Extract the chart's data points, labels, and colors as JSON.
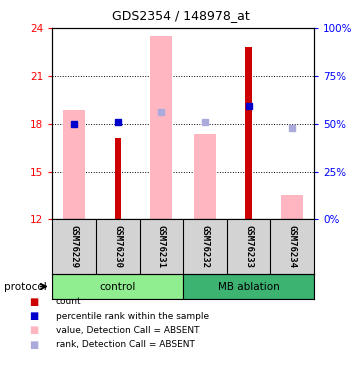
{
  "title": "GDS2354 / 148978_at",
  "samples": [
    "GSM76229",
    "GSM76230",
    "GSM76231",
    "GSM76232",
    "GSM76233",
    "GSM76234"
  ],
  "ylim_left": [
    12,
    24
  ],
  "ylim_right": [
    0,
    100
  ],
  "yticks_left": [
    12,
    15,
    18,
    21,
    24
  ],
  "yticks_right": [
    0,
    25,
    50,
    75,
    100
  ],
  "ytick_labels_right": [
    "0%",
    "25%",
    "50%",
    "75%",
    "100%"
  ],
  "pink_bar_tops": [
    18.85,
    null,
    23.5,
    17.35,
    null,
    13.5
  ],
  "red_bar_tops": [
    12.05,
    17.1,
    12.05,
    12.05,
    22.8,
    12.05
  ],
  "blue_sq_y": [
    18.0,
    18.12,
    null,
    null,
    19.1,
    null
  ],
  "light_blue_sq_y": [
    null,
    null,
    18.72,
    18.1,
    null,
    17.75
  ],
  "protocol_groups": [
    {
      "label": "control",
      "start": 0,
      "end": 3,
      "color": "#90EE90"
    },
    {
      "label": "MB ablation",
      "start": 3,
      "end": 6,
      "color": "#3CB371"
    }
  ],
  "bar_bottom": 12,
  "pink_color": "#FFB6C1",
  "red_color": "#CC0000",
  "blue_color": "#0000CC",
  "light_blue_color": "#AAAADD",
  "legend_items": [
    {
      "label": "count",
      "color": "#CC0000"
    },
    {
      "label": "percentile rank within the sample",
      "color": "#0000CC"
    },
    {
      "label": "value, Detection Call = ABSENT",
      "color": "#FFB6C1"
    },
    {
      "label": "rank, Detection Call = ABSENT",
      "color": "#AAAADD"
    }
  ]
}
